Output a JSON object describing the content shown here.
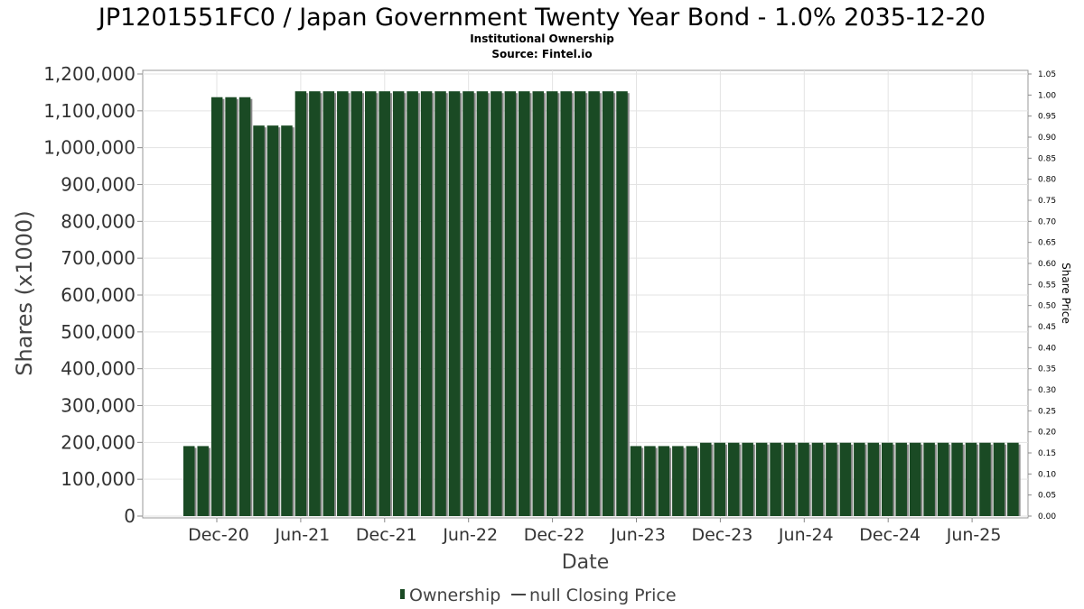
{
  "chart_data": {
    "type": "bar",
    "title": "JP1201551FC0 / Japan Government Twenty Year Bond - 1.0% 2035-12-20",
    "subtitle1": "Institutional Ownership",
    "subtitle2": "Source: Fintel.io",
    "xlabel": "Date",
    "ylabel": "Shares (x1000)",
    "y2label": "Share Price",
    "ylim": [
      0,
      1200000
    ],
    "y2lim": [
      0,
      1.05
    ],
    "yticks": [
      "0",
      "100,000",
      "200,000",
      "300,000",
      "400,000",
      "500,000",
      "600,000",
      "700,000",
      "800,000",
      "900,000",
      "1,000,000",
      "1,100,000",
      "1,200,000"
    ],
    "y2ticks": [
      "0.00",
      "0.05",
      "0.10",
      "0.15",
      "0.20",
      "0.25",
      "0.30",
      "0.35",
      "0.40",
      "0.45",
      "0.50",
      "0.55",
      "0.60",
      "0.65",
      "0.70",
      "0.75",
      "0.80",
      "0.85",
      "0.90",
      "0.95",
      "1.00",
      "1.05"
    ],
    "xticks": [
      "Dec-20",
      "Jun-21",
      "Dec-21",
      "Jun-22",
      "Dec-22",
      "Jun-23",
      "Dec-23",
      "Jun-24",
      "Dec-24",
      "Jun-25"
    ],
    "grid": true,
    "legend_position": "bottom",
    "legend": [
      {
        "label": "Ownership",
        "symbol": "bar"
      },
      {
        "label": "null Closing Price",
        "symbol": "line"
      }
    ],
    "series": [
      {
        "name": "Ownership",
        "color": "#1a4a24",
        "values": [
          190000,
          190000,
          1137000,
          1137000,
          1137000,
          1060000,
          1060000,
          1060000,
          1153000,
          1153000,
          1153000,
          1153000,
          1153000,
          1153000,
          1153000,
          1153000,
          1153000,
          1153000,
          1153000,
          1153000,
          1153000,
          1153000,
          1153000,
          1153000,
          1153000,
          1153000,
          1153000,
          1153000,
          1153000,
          1153000,
          1153000,
          1153000,
          190000,
          190000,
          190000,
          190000,
          190000,
          199000,
          199000,
          199000,
          199000,
          199000,
          199000,
          199000,
          199000,
          199000,
          199000,
          199000,
          199000,
          199000,
          199000,
          199000,
          199000,
          199000,
          199000,
          199000,
          199000,
          199000,
          199000,
          199000
        ]
      }
    ]
  }
}
